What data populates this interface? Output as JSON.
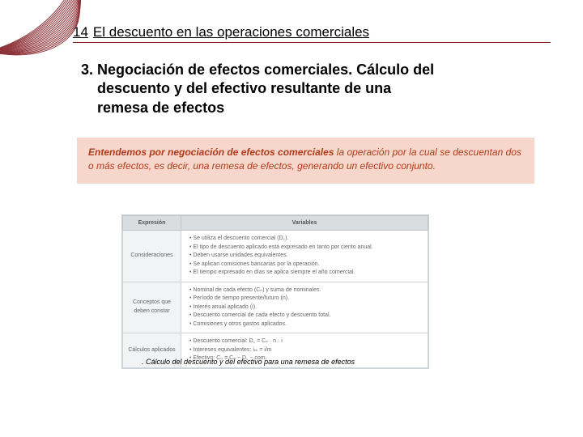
{
  "colors": {
    "accent": "#8b1a1a",
    "callout_bg": "#f7d7cb",
    "callout_text": "#b23a1a",
    "table_header_bg": "#d9dde0",
    "table_border": "#cdd3d6"
  },
  "page_number": "14",
  "page_title": "El descuento en las operaciones comerciales",
  "section": {
    "number": "3.",
    "title": "Negociación de efectos comerciales. Cálculo del",
    "sub1": "descuento y del efectivo resultante de una",
    "sub2": "remesa de efectos"
  },
  "callout": {
    "lead": "Entendemos por negociación de efectos comerciales",
    "rest": " la operación por la cual se descuentan dos o más efectos, es decir, una remesa de efectos, generando un efectivo conjunto."
  },
  "table": {
    "headers": [
      "Expresión",
      "Variables"
    ],
    "rows": [
      {
        "label": "Consideraciones",
        "items": [
          "Se utiliza el descuento comercial (D꜀).",
          "El tipo de descuento aplicado está expresado en tanto por ciento anual.",
          "Deben usarse unidades equivalentes.",
          "Se aplican comisiones bancarias por la operación.",
          "El tiempo expresado en días se aplica siempre el año comercial."
        ]
      },
      {
        "label": "Conceptos que deben constar",
        "items": [
          "Nominal de cada efecto (Cₙ) y suma de nominales.",
          "Período de tiempo presente/futuro (n).",
          "Interés anual aplicado (i).",
          "Descuento comercial de cada efecto y descuento total.",
          "Comisiones y otros gastos aplicados."
        ]
      },
      {
        "label": "Cálculos aplicados",
        "items": [
          "Descuento comercial: D꜀ = Cₙ · n · i",
          "Intereses equivalentes: iₘ = i/m",
          "Efectivo: C₀ = Cₙ − D꜀ − com."
        ]
      }
    ]
  },
  "caption": ". Cálculo del descuento y del efectivo para una remesa de efectos"
}
